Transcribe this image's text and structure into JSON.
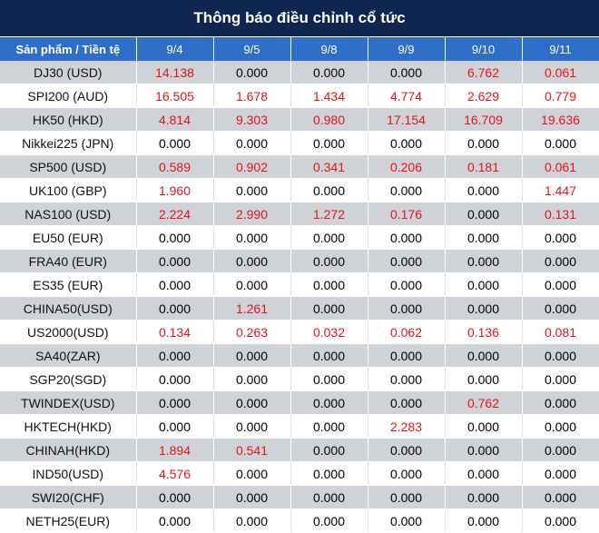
{
  "title": "Thông báo điều chỉnh cổ tức",
  "header": {
    "product_col": "Sản phẩm / Tiền tệ",
    "dates": [
      "9/4",
      "9/5",
      "9/8",
      "9/9",
      "9/10",
      "9/11"
    ]
  },
  "colors": {
    "title_bg": "#0f2650",
    "header_bg": "#2e6ec9",
    "stripe": "#cfd2d6",
    "positive_value": "#e2141a"
  },
  "rows": [
    {
      "product": "DJ30 (USD)",
      "values": [
        "14.138",
        "0.000",
        "0.000",
        "0.000",
        "6.762",
        "0.061"
      ]
    },
    {
      "product": "SPI200 (AUD)",
      "values": [
        "16.505",
        "1.678",
        "1.434",
        "4.774",
        "2.629",
        "0.779"
      ]
    },
    {
      "product": "HK50 (HKD)",
      "values": [
        "4.814",
        "9.303",
        "0.980",
        "17.154",
        "16.709",
        "19.636"
      ]
    },
    {
      "product": "Nikkei225 (JPN)",
      "values": [
        "0.000",
        "0.000",
        "0.000",
        "0.000",
        "0.000",
        "0.000"
      ]
    },
    {
      "product": "SP500 (USD)",
      "values": [
        "0.589",
        "0.902",
        "0.341",
        "0.206",
        "0.181",
        "0.061"
      ]
    },
    {
      "product": "UK100 (GBP)",
      "values": [
        "1.960",
        "0.000",
        "0.000",
        "0.000",
        "0.000",
        "1.447"
      ]
    },
    {
      "product": "NAS100 (USD)",
      "values": [
        "2.224",
        "2.990",
        "1.272",
        "0.176",
        "0.000",
        "0.131"
      ]
    },
    {
      "product": "EU50 (EUR)",
      "values": [
        "0.000",
        "0.000",
        "0.000",
        "0.000",
        "0.000",
        "0.000"
      ]
    },
    {
      "product": "FRA40 (EUR)",
      "values": [
        "0.000",
        "0.000",
        "0.000",
        "0.000",
        "0.000",
        "0.000"
      ]
    },
    {
      "product": "ES35 (EUR)",
      "values": [
        "0.000",
        "0.000",
        "0.000",
        "0.000",
        "0.000",
        "0.000"
      ]
    },
    {
      "product": "CHINA50(USD)",
      "values": [
        "0.000",
        "1.261",
        "0.000",
        "0.000",
        "0.000",
        "0.000"
      ]
    },
    {
      "product": "US2000(USD)",
      "values": [
        "0.134",
        "0.263",
        "0.032",
        "0.062",
        "0.136",
        "0.081"
      ]
    },
    {
      "product": "SA40(ZAR)",
      "values": [
        "0.000",
        "0.000",
        "0.000",
        "0.000",
        "0.000",
        "0.000"
      ]
    },
    {
      "product": "SGP20(SGD)",
      "values": [
        "0.000",
        "0.000",
        "0.000",
        "0.000",
        "0.000",
        "0.000"
      ]
    },
    {
      "product": "TWINDEX(USD)",
      "values": [
        "0.000",
        "0.000",
        "0.000",
        "0.000",
        "0.762",
        "0.000"
      ]
    },
    {
      "product": "HKTECH(HKD)",
      "values": [
        "0.000",
        "0.000",
        "0.000",
        "2.283",
        "0.000",
        "0.000"
      ]
    },
    {
      "product": "CHINAH(HKD)",
      "values": [
        "1.894",
        "0.541",
        "0.000",
        "0.000",
        "0.000",
        "0.000"
      ]
    },
    {
      "product": "IND50(USD)",
      "values": [
        "4.576",
        "0.000",
        "0.000",
        "0.000",
        "0.000",
        "0.000"
      ]
    },
    {
      "product": "SWI20(CHF)",
      "values": [
        "0.000",
        "0.000",
        "0.000",
        "0.000",
        "0.000",
        "0.000"
      ]
    },
    {
      "product": "NETH25(EUR)",
      "values": [
        "0.000",
        "0.000",
        "0.000",
        "0.000",
        "0.000",
        "0.000"
      ]
    }
  ]
}
